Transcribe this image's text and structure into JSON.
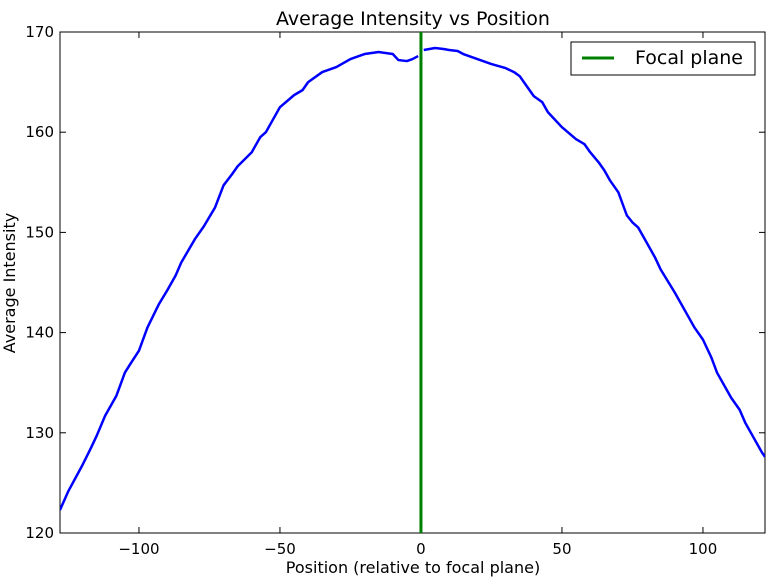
{
  "chart_data": {
    "type": "line",
    "title": "Average Intensity vs Position",
    "xlabel": "Position (relative to focal plane)",
    "ylabel": "Average Intensity",
    "xlim": [
      -128,
      122
    ],
    "ylim": [
      120,
      170
    ],
    "xticks": [
      -100,
      -50,
      0,
      50,
      100
    ],
    "xtick_labels": [
      "−100",
      "−50",
      "0",
      "50",
      "100"
    ],
    "yticks": [
      120,
      130,
      140,
      150,
      160,
      170
    ],
    "ytick_labels": [
      "120",
      "130",
      "140",
      "150",
      "160",
      "170"
    ],
    "grid": false,
    "legend_position": "top-right",
    "series": [
      {
        "name": "",
        "color": "#0000ff",
        "x": [
          -128,
          -125,
          -120,
          -117,
          -115,
          -112,
          -108,
          -105,
          -103,
          -100,
          -97,
          -93,
          -90,
          -87,
          -85,
          -80,
          -77,
          -73,
          -70,
          -67,
          -65,
          -60,
          -57,
          -55,
          -53,
          -50,
          -45,
          -42,
          -40,
          -35,
          -30,
          -25,
          -20,
          -15,
          -10,
          -8,
          -5,
          -3,
          -1
        ],
        "y": [
          122.3,
          124.2,
          126.8,
          128.5,
          129.7,
          131.7,
          133.7,
          136.0,
          136.9,
          138.2,
          140.5,
          142.8,
          144.2,
          145.7,
          147.0,
          149.4,
          150.6,
          152.5,
          154.7,
          155.8,
          156.6,
          158.0,
          159.5,
          160.0,
          161.0,
          162.5,
          163.7,
          164.2,
          165.0,
          166.0,
          166.5,
          167.3,
          167.8,
          168.0,
          167.8,
          167.2,
          167.1,
          167.3,
          167.6
        ]
      },
      {
        "name": "",
        "color": "#0000ff",
        "x": [
          1,
          3,
          5,
          8,
          10,
          13,
          15,
          20,
          25,
          30,
          33,
          35,
          37,
          40,
          43,
          45,
          50,
          55,
          58,
          60,
          63,
          65,
          67,
          70,
          73,
          75,
          77,
          80,
          83,
          85,
          90,
          95,
          97,
          100,
          103,
          105,
          110,
          113,
          115,
          118,
          121,
          122
        ],
        "y": [
          168.2,
          168.3,
          168.4,
          168.3,
          168.2,
          168.1,
          167.8,
          167.3,
          166.8,
          166.4,
          166.0,
          165.6,
          164.8,
          163.6,
          163.0,
          162.0,
          160.5,
          159.3,
          158.8,
          158.0,
          157.0,
          156.2,
          155.2,
          154.0,
          151.7,
          151.0,
          150.5,
          149.0,
          147.5,
          146.3,
          144.0,
          141.5,
          140.5,
          139.3,
          137.5,
          136.0,
          133.5,
          132.3,
          131.0,
          129.5,
          128.0,
          127.6
        ]
      },
      {
        "name": "Focal plane",
        "color": "#008000",
        "x": [
          0,
          0
        ],
        "y": [
          120,
          170
        ]
      }
    ]
  }
}
